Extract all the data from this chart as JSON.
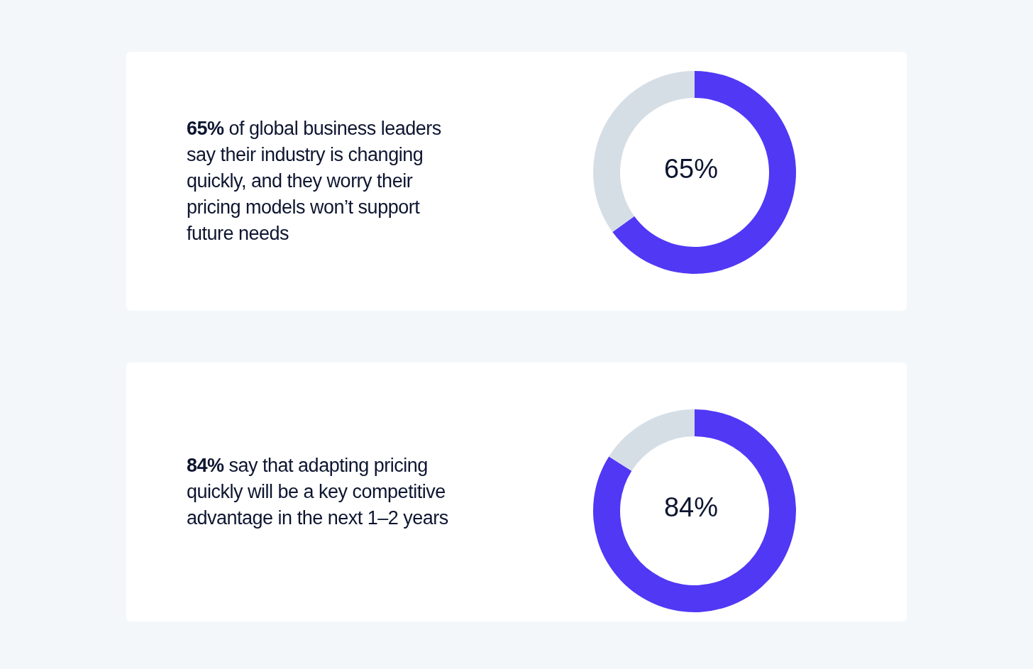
{
  "chart_data": [
    {
      "type": "donut",
      "title": "65% of global business leaders say their industry is changing quickly, and they worry their pricing models won’t support future needs",
      "categories": [
        null,
        null
      ],
      "values": [
        65,
        35
      ],
      "colors": [
        "#5038f5",
        "#d6dee5"
      ],
      "annotations": [
        "65%"
      ]
    },
    {
      "type": "donut",
      "title": "84% say that adapting pricing quickly will be a key competitive advantage in the next 1–2 years",
      "categories": [
        null,
        null
      ],
      "values": [
        84,
        16
      ],
      "colors": [
        "#5038f5",
        "#d6dee5"
      ],
      "annotations": [
        "84%"
      ]
    }
  ]
}
